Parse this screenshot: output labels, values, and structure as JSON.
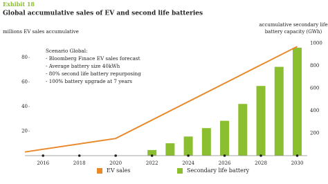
{
  "chart_data": {
    "type": "combo",
    "exhibit": "Exhibit 18",
    "title": "Global accumulative sales of EV and second life batteries",
    "y_label": "millions EV sales accumulative",
    "y2_label": [
      "accumulative secondary life",
      "battery capacity (GWh)"
    ],
    "annotations": [
      "Scenario Global:",
      "- Bloomberg Finace EV sales forecast",
      "- Average battery size 40kWh",
      "- 80% second life battery repurposing",
      "- 100% battery upgrade at 7 years"
    ],
    "xlim": [
      2015,
      2030.4
    ],
    "xticks": [
      2016,
      2018,
      2020,
      2022,
      2024,
      2026,
      2028,
      2030
    ],
    "ylim": [
      0,
      110
    ],
    "yticks": [
      20,
      40,
      60,
      80
    ],
    "y2lim": [
      0,
      1200
    ],
    "y2ticks": [
      200,
      400,
      600,
      800,
      1000
    ],
    "grid": false,
    "legend": "bottom",
    "series": [
      {
        "name": "EV sales",
        "type": "line",
        "color": "#e8892b",
        "x": [
          2015,
          2020,
          2030
        ],
        "values": [
          3,
          14,
          89
        ]
      },
      {
        "name": "Secondary life battery",
        "type": "bar",
        "axis": "y2",
        "color": "#8cbf2f",
        "x": [
          2022,
          2023,
          2024,
          2025,
          2026,
          2027,
          2028,
          2029,
          2030
        ],
        "values": [
          50,
          110,
          170,
          245,
          310,
          460,
          620,
          790,
          960
        ]
      }
    ]
  }
}
